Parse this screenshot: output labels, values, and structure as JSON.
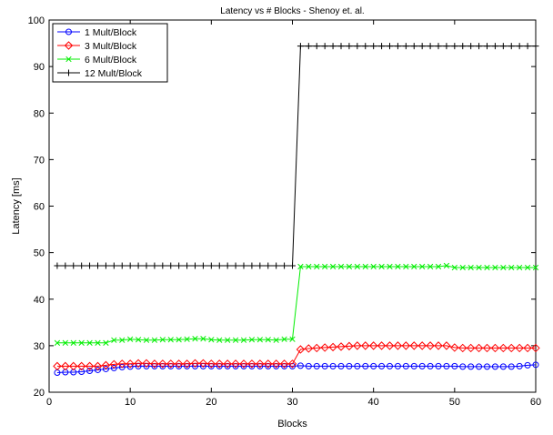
{
  "chart_data": {
    "type": "line",
    "title": "Latency vs # Blocks - Shenoy et. al.",
    "xlabel": "Blocks",
    "ylabel": "Latency [ms]",
    "xlim": [
      0,
      60
    ],
    "ylim": [
      20,
      100
    ],
    "xticks": [
      0,
      10,
      20,
      30,
      40,
      50,
      60
    ],
    "yticks": [
      20,
      30,
      40,
      50,
      60,
      70,
      80,
      90,
      100
    ],
    "grid": false,
    "legend": "top-left",
    "x": [
      1,
      2,
      3,
      4,
      5,
      6,
      7,
      8,
      9,
      10,
      11,
      12,
      13,
      14,
      15,
      16,
      17,
      18,
      19,
      20,
      21,
      22,
      23,
      24,
      25,
      26,
      27,
      28,
      29,
      30,
      31,
      32,
      33,
      34,
      35,
      36,
      37,
      38,
      39,
      40,
      41,
      42,
      43,
      44,
      45,
      46,
      47,
      48,
      49,
      50,
      51,
      52,
      53,
      54,
      55,
      56,
      57,
      58,
      59,
      60
    ],
    "series": [
      {
        "name": "1 Mult/Block",
        "color": "#0000ff",
        "marker": "circle",
        "values": [
          24.2,
          24.3,
          24.3,
          24.4,
          24.6,
          24.8,
          25.0,
          25.2,
          25.4,
          25.5,
          25.6,
          25.6,
          25.6,
          25.6,
          25.6,
          25.6,
          25.6,
          25.6,
          25.6,
          25.6,
          25.6,
          25.6,
          25.6,
          25.6,
          25.6,
          25.6,
          25.6,
          25.6,
          25.6,
          25.6,
          25.7,
          25.6,
          25.6,
          25.6,
          25.6,
          25.6,
          25.6,
          25.6,
          25.6,
          25.6,
          25.6,
          25.6,
          25.6,
          25.6,
          25.6,
          25.6,
          25.6,
          25.6,
          25.6,
          25.6,
          25.5,
          25.5,
          25.5,
          25.5,
          25.5,
          25.5,
          25.5,
          25.6,
          25.8,
          25.9
        ]
      },
      {
        "name": "3 Mult/Block",
        "color": "#ff0000",
        "marker": "diamond",
        "values": [
          25.6,
          25.6,
          25.6,
          25.6,
          25.6,
          25.6,
          25.8,
          26.0,
          26.1,
          26.1,
          26.2,
          26.2,
          26.1,
          26.1,
          26.1,
          26.1,
          26.1,
          26.2,
          26.2,
          26.1,
          26.1,
          26.1,
          26.1,
          26.1,
          26.1,
          26.1,
          26.1,
          26.1,
          26.1,
          26.1,
          29.2,
          29.4,
          29.5,
          29.6,
          29.7,
          29.8,
          29.9,
          30.0,
          30.0,
          30.0,
          30.0,
          30.0,
          30.0,
          30.0,
          30.0,
          30.0,
          30.0,
          30.0,
          30.0,
          29.6,
          29.5,
          29.5,
          29.5,
          29.5,
          29.5,
          29.5,
          29.5,
          29.5,
          29.5,
          29.5
        ]
      },
      {
        "name": "6 Mult/Block",
        "color": "#00ee00",
        "marker": "x",
        "values": [
          30.6,
          30.6,
          30.6,
          30.6,
          30.6,
          30.6,
          30.6,
          31.2,
          31.2,
          31.4,
          31.3,
          31.2,
          31.2,
          31.3,
          31.3,
          31.3,
          31.4,
          31.5,
          31.5,
          31.3,
          31.2,
          31.2,
          31.2,
          31.2,
          31.3,
          31.3,
          31.3,
          31.2,
          31.4,
          31.4,
          47.0,
          47.0,
          47.0,
          47.0,
          47.0,
          47.0,
          47.0,
          47.0,
          47.0,
          47.0,
          47.0,
          47.0,
          47.0,
          47.0,
          47.0,
          47.0,
          47.0,
          47.0,
          47.2,
          46.8,
          46.8,
          46.8,
          46.8,
          46.8,
          46.8,
          46.8,
          46.8,
          46.8,
          46.8,
          46.8
        ]
      },
      {
        "name": "12 Mult/Block",
        "color": "#000000",
        "marker": "plus",
        "values": [
          47.2,
          47.2,
          47.2,
          47.2,
          47.2,
          47.2,
          47.2,
          47.2,
          47.2,
          47.2,
          47.2,
          47.2,
          47.2,
          47.2,
          47.2,
          47.2,
          47.2,
          47.2,
          47.2,
          47.2,
          47.2,
          47.2,
          47.2,
          47.2,
          47.2,
          47.2,
          47.2,
          47.2,
          47.2,
          47.2,
          94.4,
          94.4,
          94.4,
          94.4,
          94.4,
          94.4,
          94.4,
          94.4,
          94.4,
          94.4,
          94.4,
          94.4,
          94.4,
          94.4,
          94.4,
          94.4,
          94.4,
          94.4,
          94.4,
          94.4,
          94.4,
          94.4,
          94.4,
          94.4,
          94.4,
          94.4,
          94.4,
          94.4,
          94.4,
          94.4
        ]
      }
    ]
  }
}
